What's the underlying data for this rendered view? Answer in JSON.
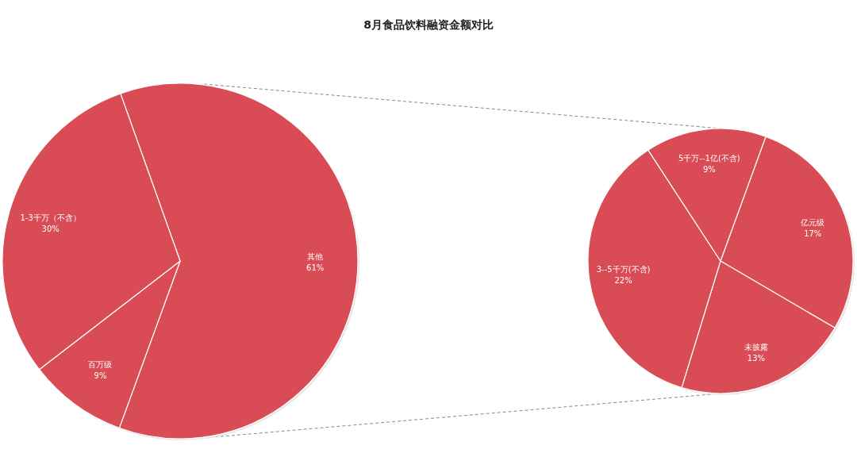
{
  "chart_data": [
    {
      "type": "pie",
      "title": "8月食品饮料融资金额对比",
      "categories": [
        "其他",
        "百万级",
        "1-3千万（不含）"
      ],
      "values": [
        61,
        9,
        30
      ],
      "value_labels": [
        "61%",
        "9%",
        "30%"
      ],
      "colors": [
        "#d94c55",
        "#d94c55",
        "#d94c55"
      ]
    },
    {
      "type": "pie",
      "categories": [
        "亿元级",
        "未披露",
        "3--5千万(不含)",
        "5千万--1亿(不含)"
      ],
      "values": [
        17,
        13,
        22,
        9
      ],
      "value_labels": [
        "17%",
        "13%",
        "22%",
        "9%"
      ],
      "colors": [
        "#d94c55",
        "#d94c55",
        "#d94c55",
        "#d94c55"
      ]
    }
  ]
}
